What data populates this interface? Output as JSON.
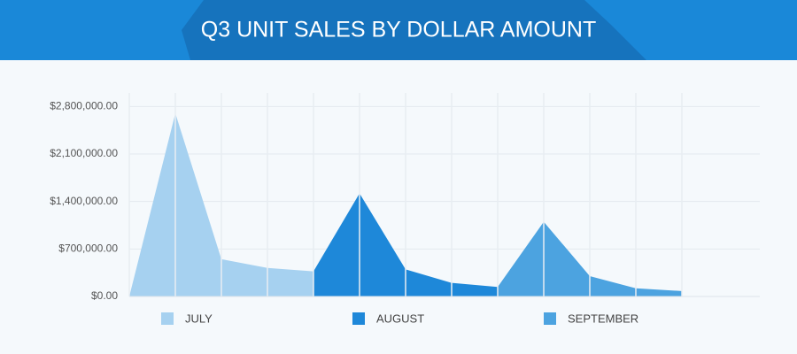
{
  "chart_data": {
    "type": "area",
    "title": "Q3 UNIT SALES BY DOLLAR AMOUNT",
    "categories": [
      null,
      null,
      null,
      null,
      null,
      null,
      null,
      null,
      null,
      null,
      null,
      null,
      null
    ],
    "series": [
      {
        "name": "JULY",
        "color": "#a6d1f0",
        "values": [
          0,
          2700000,
          550000,
          420000,
          370000,
          null,
          null,
          null,
          null,
          null,
          null,
          null,
          null
        ]
      },
      {
        "name": "AUGUST",
        "color": "#1e88d9",
        "values": [
          null,
          null,
          null,
          null,
          370000,
          1520000,
          400000,
          200000,
          140000,
          null,
          null,
          null,
          null
        ]
      },
      {
        "name": "SEPTEMBER",
        "color": "#4ca3e0",
        "values": [
          null,
          null,
          null,
          null,
          null,
          null,
          null,
          null,
          140000,
          1100000,
          300000,
          120000,
          80000
        ]
      }
    ],
    "ylim": [
      0,
      3000000
    ],
    "yticks": [
      {
        "value": 0,
        "label": "$0.00"
      },
      {
        "value": 700000,
        "label": "$700,000.00"
      },
      {
        "value": 1400000,
        "label": "$1,400,000.00"
      },
      {
        "value": 2100000,
        "label": "$2,100,000.00"
      },
      {
        "value": 2800000,
        "label": "$2,800,000.00"
      }
    ],
    "grid": true
  }
}
